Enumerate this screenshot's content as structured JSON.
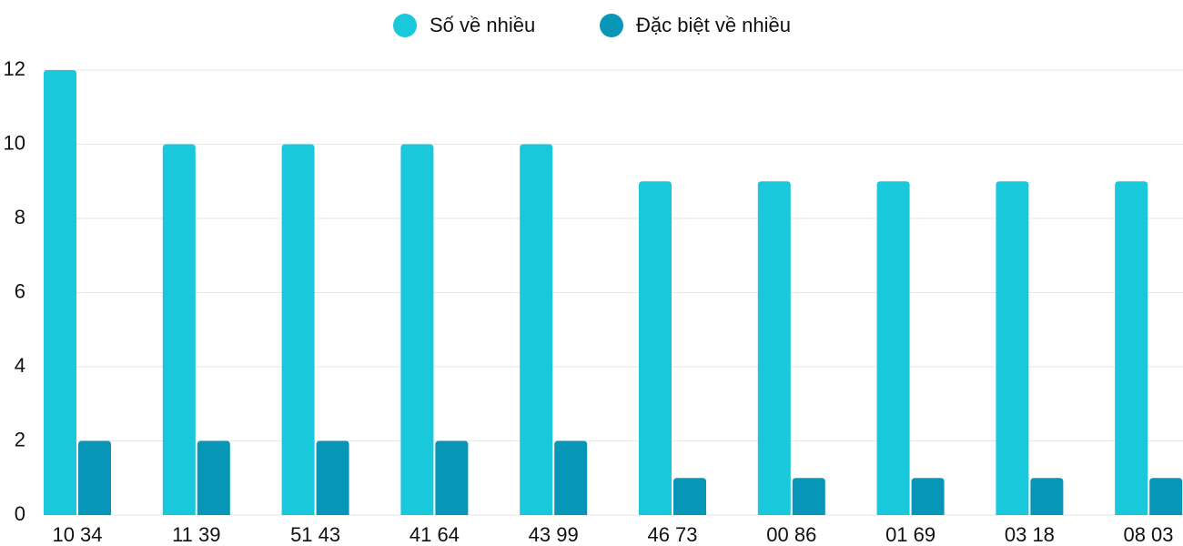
{
  "chart_data": {
    "type": "bar",
    "categories": [
      "10 34",
      "11 39",
      "51 43",
      "41 64",
      "43 99",
      "46 73",
      "00 86",
      "01 69",
      "03 18",
      "08 03"
    ],
    "series": [
      {
        "name": "Số về nhiều",
        "color": "#1ac8db",
        "values": [
          12,
          10,
          10,
          10,
          10,
          9,
          9,
          9,
          9,
          9
        ]
      },
      {
        "name": "Đặc biệt về nhiều",
        "color": "#0795b8",
        "values": [
          2,
          2,
          2,
          2,
          2,
          1,
          1,
          1,
          1,
          1
        ]
      }
    ],
    "ylim": [
      0,
      12
    ],
    "yticks": [
      0,
      2,
      4,
      6,
      8,
      10,
      12
    ],
    "grid": true,
    "legend": "top"
  }
}
